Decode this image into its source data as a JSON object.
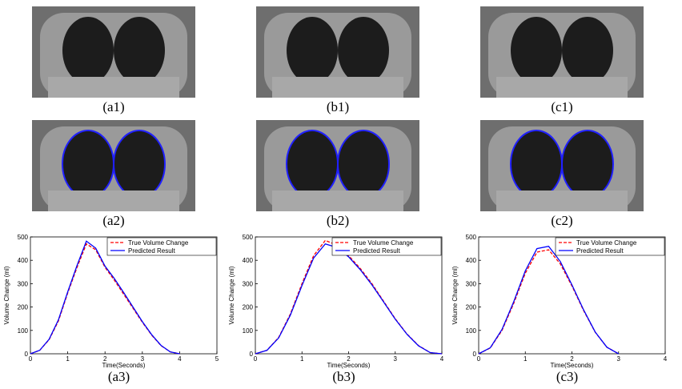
{
  "images": [
    {
      "caption": "(a1)"
    },
    {
      "caption": "(b1)"
    },
    {
      "caption": "(c1)"
    },
    {
      "caption": "(a2)"
    },
    {
      "caption": "(b2)"
    },
    {
      "caption": "(c2)"
    }
  ],
  "chart_data": [
    {
      "type": "line",
      "caption": "(a3)",
      "xlabel": "Time(Seconds)",
      "ylabel": "Volume Change (ml)",
      "x": [
        0,
        0.25,
        0.5,
        0.75,
        1,
        1.25,
        1.5,
        1.75,
        2,
        2.25,
        2.5,
        2.75,
        3,
        3.25,
        3.5,
        3.75,
        4
      ],
      "series": [
        {
          "name": "True Volume Change",
          "color": "#ff0000",
          "dash": true,
          "values": [
            0,
            15,
            60,
            140,
            260,
            370,
            470,
            445,
            370,
            315,
            255,
            195,
            135,
            80,
            35,
            8,
            0
          ]
        },
        {
          "name": "Predicted Result",
          "color": "#0000ff",
          "dash": false,
          "values": [
            0,
            15,
            62,
            145,
            265,
            378,
            482,
            452,
            375,
            322,
            262,
            200,
            138,
            82,
            36,
            8,
            0
          ]
        }
      ],
      "xlim": [
        0,
        5
      ],
      "xticks": [
        0,
        1,
        2,
        3,
        4,
        5
      ],
      "ylim": [
        0,
        500
      ],
      "yticks": [
        0,
        100,
        200,
        300,
        400,
        500
      ],
      "legend": "upper right"
    },
    {
      "type": "line",
      "caption": "(b3)",
      "xlabel": "Time(Seconds)",
      "ylabel": "Volume Change (ml)",
      "x": [
        0,
        0.25,
        0.5,
        0.75,
        1,
        1.25,
        1.5,
        1.75,
        2,
        2.25,
        2.5,
        2.75,
        3,
        3.25,
        3.5,
        3.75,
        4
      ],
      "series": [
        {
          "name": "True Volume Change",
          "color": "#ff0000",
          "dash": true,
          "values": [
            0,
            15,
            70,
            170,
            300,
            420,
            485,
            465,
            420,
            365,
            300,
            225,
            150,
            85,
            35,
            5,
            0
          ]
        },
        {
          "name": "Predicted Result",
          "color": "#0000ff",
          "dash": false,
          "values": [
            0,
            15,
            68,
            165,
            292,
            410,
            470,
            455,
            415,
            360,
            295,
            222,
            148,
            84,
            34,
            5,
            0
          ]
        }
      ],
      "xlim": [
        0,
        4
      ],
      "xticks": [
        0,
        1,
        2,
        3,
        4
      ],
      "ylim": [
        0,
        500
      ],
      "yticks": [
        0,
        100,
        200,
        300,
        400,
        500
      ],
      "legend": "upper right"
    },
    {
      "type": "line",
      "caption": "(c3)",
      "xlabel": "Time(Seconds)",
      "ylabel": "Volume Change (ml)",
      "x": [
        0,
        0.25,
        0.5,
        0.75,
        1,
        1.25,
        1.5,
        1.75,
        2,
        2.25,
        2.5,
        2.75,
        3
      ],
      "series": [
        {
          "name": "True Volume Change",
          "color": "#ff0000",
          "dash": true,
          "values": [
            0,
            25,
            100,
            215,
            345,
            435,
            445,
            385,
            290,
            185,
            92,
            28,
            0
          ]
        },
        {
          "name": "Predicted Result",
          "color": "#0000ff",
          "dash": false,
          "values": [
            0,
            26,
            104,
            222,
            355,
            450,
            460,
            395,
            295,
            188,
            93,
            28,
            0
          ]
        }
      ],
      "xlim": [
        0,
        4
      ],
      "xticks": [
        0,
        1,
        2,
        3,
        4
      ],
      "ylim": [
        0,
        500
      ],
      "yticks": [
        0,
        100,
        200,
        300,
        400,
        500
      ],
      "legend": "upper right"
    }
  ]
}
